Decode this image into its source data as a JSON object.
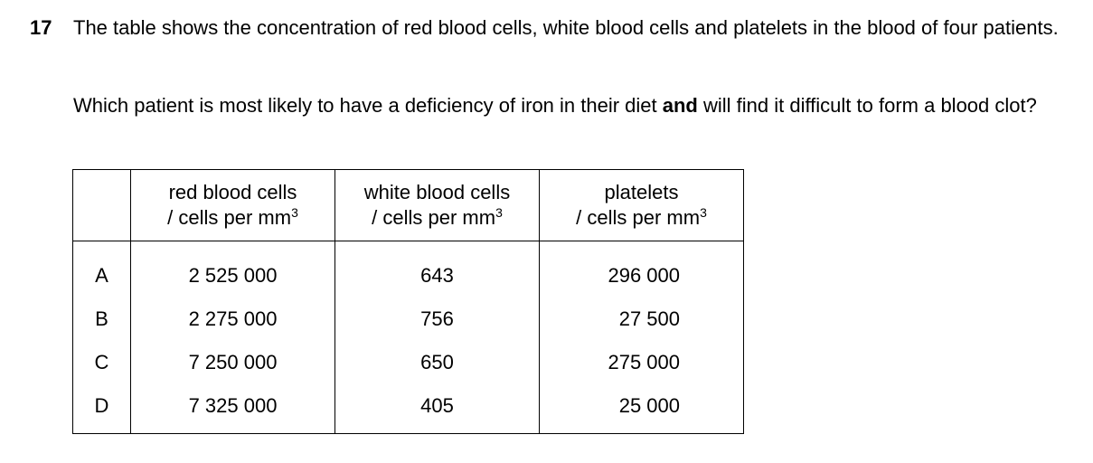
{
  "question": {
    "number": "17",
    "intro_line": "The table shows the concentration of red blood cells, white blood cells and platelets in the blood of four patients.",
    "prompt_before": "Which patient is most likely to have a deficiency of iron in their diet ",
    "prompt_bold": "and",
    "prompt_after": " will find it difficult to form a blood clot?"
  },
  "table": {
    "headers": [
      {
        "line1": "red blood cells",
        "line2": "/ cells per mm",
        "sup": "3"
      },
      {
        "line1": "white blood cells",
        "line2": "/ cells per mm",
        "sup": "3"
      },
      {
        "line1": "platelets",
        "line2": "/ cells per mm",
        "sup": "3"
      }
    ],
    "rows": [
      {
        "label": "A",
        "red": "2 525 000",
        "white": "643",
        "platelets": "296 000"
      },
      {
        "label": "B",
        "red": "2 275 000",
        "white": "756",
        "platelets": "27 500"
      },
      {
        "label": "C",
        "red": "7 250 000",
        "white": "650",
        "platelets": "275 000"
      },
      {
        "label": "D",
        "red": "7 325 000",
        "white": "405",
        "platelets": "25 000"
      }
    ]
  }
}
